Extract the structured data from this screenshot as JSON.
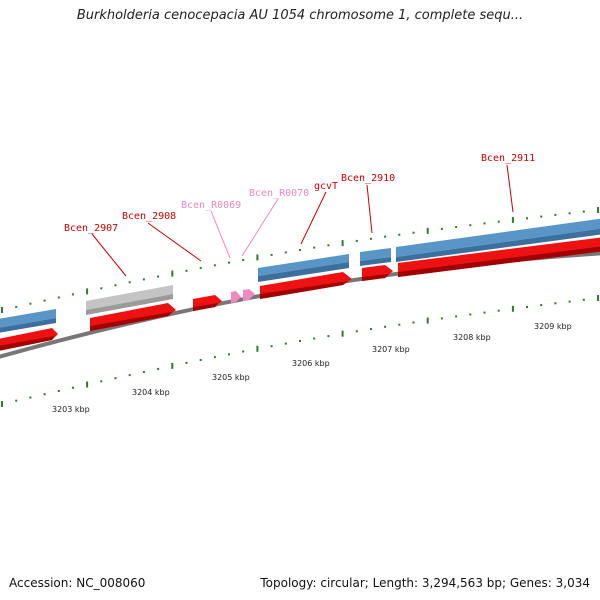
{
  "title": "Burkholderia cenocepacia AU 1054 chromosome 1, complete sequ...",
  "accession": "Accession: NC_008060",
  "summary": "Topology: circular; Length: 3,294,563 bp; Genes: 3,034",
  "colors": {
    "cds_forward": "#ee1111",
    "cds_reverse_dark": "#3a6f9e",
    "cds_reverse_light": "#5a95c8",
    "pseudogene": "#b8b8b8",
    "rna": "#f08ac0",
    "label_cds": "#cc0000",
    "label_rna": "#ee88bb",
    "tick": "#2e7d2e",
    "backbone": "#777777"
  },
  "features": [
    {
      "id": "Bcen_2907",
      "kind": "cds"
    },
    {
      "id": "Bcen_2908",
      "kind": "cds"
    },
    {
      "id": "Bcen_R0069",
      "kind": "rna"
    },
    {
      "id": "Bcen_R0070",
      "kind": "rna"
    },
    {
      "id": "gcvT",
      "kind": "cds"
    },
    {
      "id": "Bcen_2910",
      "kind": "cds"
    },
    {
      "id": "Bcen_2911",
      "kind": "cds"
    }
  ],
  "scale": [
    "3203 kbp",
    "3204 kbp",
    "3205 kbp",
    "3206 kbp",
    "3207 kbp",
    "3208 kbp",
    "3209 kbp"
  ]
}
